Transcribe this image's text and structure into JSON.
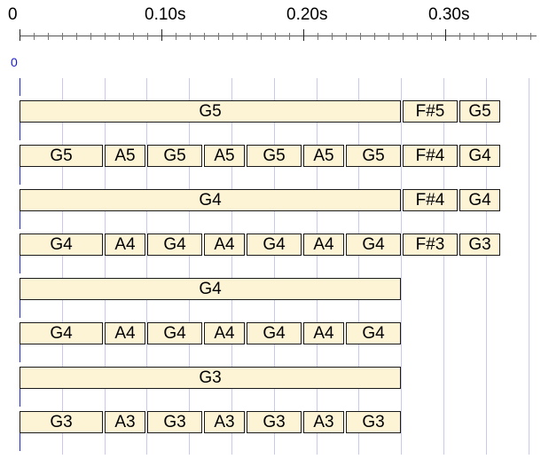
{
  "timeline": {
    "tick_labels": [
      "0",
      "0.10s",
      "0.20s",
      "0.30s"
    ],
    "offset_label": "0"
  },
  "rows": [
    {
      "notes": [
        {
          "label": "G5",
          "start": 0.0,
          "end": 0.27
        },
        {
          "label": "F#5",
          "start": 0.27,
          "end": 0.31
        },
        {
          "label": "G5",
          "start": 0.31,
          "end": 0.34
        }
      ]
    },
    {
      "notes": [
        {
          "label": "G5",
          "start": 0.0,
          "end": 0.06
        },
        {
          "label": "A5",
          "start": 0.06,
          "end": 0.09
        },
        {
          "label": "G5",
          "start": 0.09,
          "end": 0.13
        },
        {
          "label": "A5",
          "start": 0.13,
          "end": 0.16
        },
        {
          "label": "G5",
          "start": 0.16,
          "end": 0.2
        },
        {
          "label": "A5",
          "start": 0.2,
          "end": 0.23
        },
        {
          "label": "G5",
          "start": 0.23,
          "end": 0.27
        },
        {
          "label": "F#4",
          "start": 0.27,
          "end": 0.31
        },
        {
          "label": "G4",
          "start": 0.31,
          "end": 0.34
        }
      ]
    },
    {
      "notes": [
        {
          "label": "G4",
          "start": 0.0,
          "end": 0.27
        },
        {
          "label": "F#4",
          "start": 0.27,
          "end": 0.31
        },
        {
          "label": "G4",
          "start": 0.31,
          "end": 0.34
        }
      ]
    },
    {
      "notes": [
        {
          "label": "G4",
          "start": 0.0,
          "end": 0.06
        },
        {
          "label": "A4",
          "start": 0.06,
          "end": 0.09
        },
        {
          "label": "G4",
          "start": 0.09,
          "end": 0.13
        },
        {
          "label": "A4",
          "start": 0.13,
          "end": 0.16
        },
        {
          "label": "G4",
          "start": 0.16,
          "end": 0.2
        },
        {
          "label": "A4",
          "start": 0.2,
          "end": 0.23
        },
        {
          "label": "G4",
          "start": 0.23,
          "end": 0.27
        },
        {
          "label": "F#3",
          "start": 0.27,
          "end": 0.31
        },
        {
          "label": "G3",
          "start": 0.31,
          "end": 0.34
        }
      ]
    },
    {
      "notes": [
        {
          "label": "G4",
          "start": 0.0,
          "end": 0.27
        }
      ]
    },
    {
      "notes": [
        {
          "label": "G4",
          "start": 0.0,
          "end": 0.06
        },
        {
          "label": "A4",
          "start": 0.06,
          "end": 0.09
        },
        {
          "label": "G4",
          "start": 0.09,
          "end": 0.13
        },
        {
          "label": "A4",
          "start": 0.13,
          "end": 0.16
        },
        {
          "label": "G4",
          "start": 0.16,
          "end": 0.2
        },
        {
          "label": "A4",
          "start": 0.2,
          "end": 0.23
        },
        {
          "label": "G4",
          "start": 0.23,
          "end": 0.27
        }
      ]
    },
    {
      "notes": [
        {
          "label": "G3",
          "start": 0.0,
          "end": 0.27
        }
      ]
    },
    {
      "notes": [
        {
          "label": "G3",
          "start": 0.0,
          "end": 0.06
        },
        {
          "label": "A3",
          "start": 0.06,
          "end": 0.09
        },
        {
          "label": "G3",
          "start": 0.09,
          "end": 0.13
        },
        {
          "label": "A3",
          "start": 0.13,
          "end": 0.16
        },
        {
          "label": "G3",
          "start": 0.16,
          "end": 0.2
        },
        {
          "label": "A3",
          "start": 0.2,
          "end": 0.23
        },
        {
          "label": "G3",
          "start": 0.23,
          "end": 0.27
        }
      ]
    }
  ],
  "colors": {
    "note_fill": "#fdf4d6",
    "note_border": "#1a1a1a",
    "grid_line": "#c8c8f0",
    "row_marker": "#1e2ad8",
    "offset_label": "#1a1acc"
  }
}
